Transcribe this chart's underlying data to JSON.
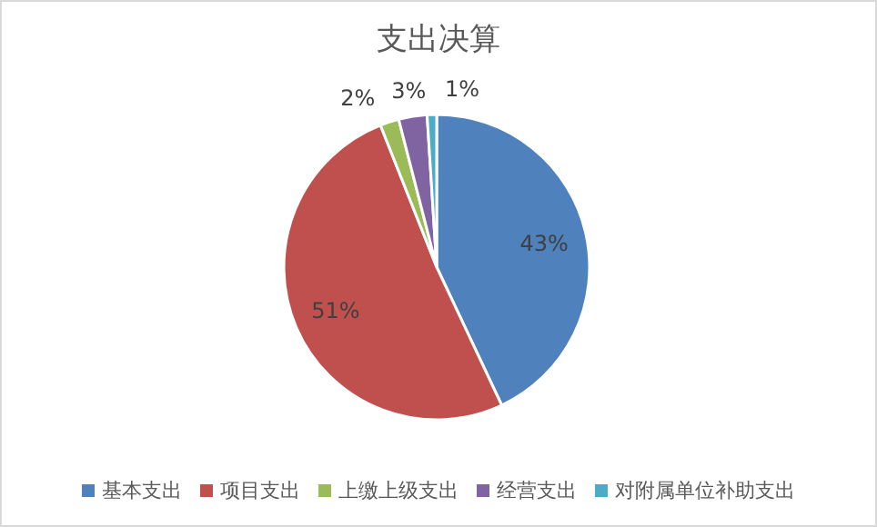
{
  "chart_data": {
    "type": "pie",
    "title": "支出决算",
    "categories": [
      "基本支出",
      "项目支出",
      "上缴上级支出",
      "经营支出",
      "对附属单位补助支出"
    ],
    "values": [
      43,
      51,
      2,
      3,
      1
    ],
    "colors": [
      "#4f81bd",
      "#c0504d",
      "#9bbb59",
      "#8064a2",
      "#4bacc6"
    ],
    "value_labels": [
      "43%",
      "51%",
      "2%",
      "3%",
      "1%"
    ],
    "legend": "bottom"
  }
}
